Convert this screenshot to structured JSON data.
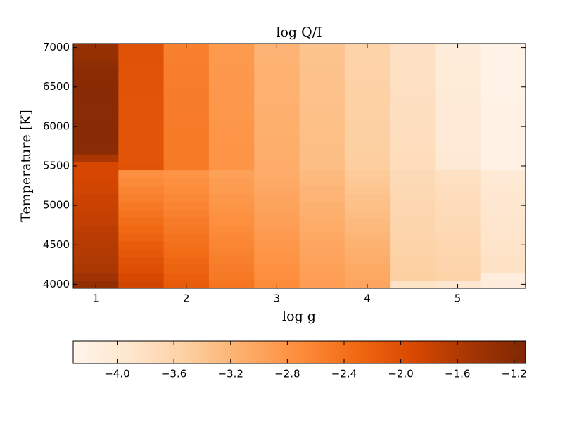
{
  "chart_data": {
    "type": "heatmap",
    "title": "log Q/I",
    "x_label": "log g",
    "y_label": "Temperature [K]",
    "x": [
      1,
      1.5,
      2,
      2.5,
      3,
      3.5,
      4,
      4.5,
      5,
      5.5
    ],
    "y": [
      4000,
      4100,
      4200,
      4300,
      4400,
      4500,
      4600,
      4700,
      4800,
      4900,
      5000,
      5100,
      5200,
      5300,
      5400,
      5500,
      5600,
      5700,
      5800,
      5900,
      6000,
      6100,
      6200,
      6300,
      6400,
      6500,
      6600,
      6700,
      6800,
      6900,
      7000
    ],
    "values": [
      [
        -1.3,
        -1.85,
        -2.15,
        -2.45,
        -2.7,
        -2.9,
        -3.0,
        -3.85,
        -3.95,
        -4.1
      ],
      [
        -1.45,
        -1.91,
        -2.2,
        -2.49,
        -2.73,
        -2.92,
        -3.03,
        -3.51,
        -3.57,
        -4.1
      ],
      [
        -1.56,
        -1.98,
        -2.24,
        -2.52,
        -2.76,
        -2.95,
        -3.06,
        -3.53,
        -3.59,
        -3.83
      ],
      [
        -1.59,
        -2.04,
        -2.29,
        -2.56,
        -2.79,
        -2.97,
        -3.1,
        -3.54,
        -3.6,
        -3.84
      ],
      [
        -1.61,
        -2.11,
        -2.34,
        -2.59,
        -2.81,
        -3.0,
        -3.13,
        -3.56,
        -3.62,
        -3.86
      ],
      [
        -1.64,
        -2.17,
        -2.38,
        -2.63,
        -2.84,
        -3.02,
        -3.16,
        -3.57,
        -3.64,
        -3.87
      ],
      [
        -1.67,
        -2.24,
        -2.43,
        -2.66,
        -2.87,
        -3.05,
        -3.19,
        -3.59,
        -3.66,
        -3.89
      ],
      [
        -1.7,
        -2.3,
        -2.48,
        -2.7,
        -2.9,
        -3.08,
        -3.23,
        -3.6,
        -3.68,
        -3.9
      ],
      [
        -1.73,
        -2.36,
        -2.52,
        -2.74,
        -2.93,
        -3.1,
        -3.26,
        -3.61,
        -3.69,
        -3.91
      ],
      [
        -1.76,
        -2.43,
        -2.57,
        -2.77,
        -2.96,
        -3.13,
        -3.29,
        -3.63,
        -3.71,
        -3.93
      ],
      [
        -1.79,
        -2.49,
        -2.61,
        -2.81,
        -2.99,
        -3.15,
        -3.32,
        -3.64,
        -3.73,
        -3.94
      ],
      [
        -1.81,
        -2.56,
        -2.66,
        -2.84,
        -3.01,
        -3.18,
        -3.35,
        -3.66,
        -3.75,
        -3.96
      ],
      [
        -1.84,
        -2.62,
        -2.71,
        -2.88,
        -3.04,
        -3.2,
        -3.39,
        -3.67,
        -3.76,
        -3.97
      ],
      [
        -1.87,
        -2.69,
        -2.75,
        -2.91,
        -3.07,
        -3.23,
        -3.42,
        -3.69,
        -3.78,
        -3.99
      ],
      [
        -1.9,
        -2.75,
        -2.8,
        -2.95,
        -3.1,
        -3.25,
        -3.45,
        -3.7,
        -3.8,
        -4.0
      ],
      [
        -1.9,
        -2.05,
        -2.5,
        -2.8,
        -3.1,
        -3.3,
        -3.5,
        -3.75,
        -4.0,
        -4.2
      ],
      [
        -1.55,
        -2.08,
        -2.5,
        -2.8,
        -3.1,
        -3.3,
        -3.5,
        -3.75,
        -4.0,
        -4.2
      ],
      [
        -1.22,
        -2.08,
        -2.5,
        -2.81,
        -3.11,
        -3.3,
        -3.51,
        -3.76,
        -4.01,
        -4.2
      ],
      [
        -1.22,
        -2.08,
        -2.51,
        -2.81,
        -3.11,
        -3.31,
        -3.51,
        -3.76,
        -4.01,
        -4.21
      ],
      [
        -1.21,
        -2.07,
        -2.51,
        -2.82,
        -3.12,
        -3.31,
        -3.52,
        -3.77,
        -4.02,
        -4.21
      ],
      [
        -1.21,
        -2.07,
        -2.52,
        -2.82,
        -3.12,
        -3.32,
        -3.52,
        -3.77,
        -4.02,
        -4.22
      ],
      [
        -1.22,
        -2.07,
        -2.52,
        -2.83,
        -3.13,
        -3.32,
        -3.53,
        -3.78,
        -4.03,
        -4.22
      ],
      [
        -1.22,
        -2.06,
        -2.53,
        -2.83,
        -3.13,
        -3.33,
        -3.53,
        -3.78,
        -4.03,
        -4.23
      ],
      [
        -1.22,
        -2.06,
        -2.53,
        -2.84,
        -3.14,
        -3.33,
        -3.54,
        -3.79,
        -4.04,
        -4.23
      ],
      [
        -1.21,
        -2.06,
        -2.54,
        -2.84,
        -3.14,
        -3.34,
        -3.54,
        -3.79,
        -4.04,
        -4.24
      ],
      [
        -1.21,
        -2.05,
        -2.54,
        -2.85,
        -3.15,
        -3.34,
        -3.55,
        -3.8,
        -4.05,
        -4.24
      ],
      [
        -1.23,
        -2.05,
        -2.55,
        -2.85,
        -3.15,
        -3.35,
        -3.55,
        -3.8,
        -4.05,
        -4.25
      ],
      [
        -1.25,
        -2.05,
        -2.55,
        -2.86,
        -3.16,
        -3.35,
        -3.56,
        -3.81,
        -4.06,
        -4.25
      ],
      [
        -1.28,
        -2.04,
        -2.56,
        -2.86,
        -3.16,
        -3.36,
        -3.56,
        -3.81,
        -4.06,
        -4.26
      ],
      [
        -1.35,
        -2.04,
        -2.56,
        -2.87,
        -3.17,
        -3.36,
        -3.57,
        -3.82,
        -4.07,
        -4.26
      ],
      [
        -1.35,
        -2.04,
        -2.57,
        -2.87,
        -3.17,
        -3.37,
        -3.57,
        -3.82,
        -4.07,
        -4.27
      ]
    ],
    "xlim": [
      0.75,
      5.75
    ],
    "ylim": [
      3950,
      7050
    ],
    "xticks": [
      1,
      2,
      3,
      4,
      5
    ],
    "yticks": [
      4000,
      4500,
      5000,
      5500,
      6000,
      6500,
      7000
    ],
    "colormap": [
      "#fff5eb",
      "#fee6ce",
      "#fdd0a2",
      "#fdae6b",
      "#fd8d3c",
      "#f16913",
      "#d94801",
      "#a63603",
      "#7f2704"
    ],
    "clim": [
      -4.31,
      -1.12
    ],
    "cticks": [
      {
        "value": -4.0,
        "label": "−4.0"
      },
      {
        "value": -3.6,
        "label": "−3.6"
      },
      {
        "value": -3.2,
        "label": "−3.2"
      },
      {
        "value": -2.8,
        "label": "−2.8"
      },
      {
        "value": -2.4,
        "label": "−2.4"
      },
      {
        "value": -2.0,
        "label": "−2.0"
      },
      {
        "value": -1.6,
        "label": "−1.6"
      },
      {
        "value": -1.2,
        "label": "−1.2"
      }
    ]
  }
}
